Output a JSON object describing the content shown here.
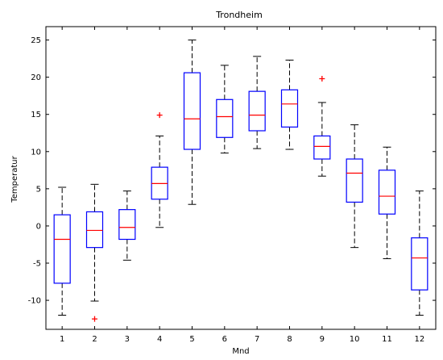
{
  "chart_data": {
    "type": "box",
    "title": "Trondheim",
    "xlabel": "Mnd",
    "ylabel": "Temperatur",
    "categories": [
      "1",
      "2",
      "3",
      "4",
      "5",
      "6",
      "7",
      "8",
      "9",
      "10",
      "11",
      "12"
    ],
    "yticks": [
      25,
      20,
      15,
      10,
      5,
      0,
      -5,
      -10
    ],
    "ylim": [
      -13.9,
      26.8
    ],
    "grid": false,
    "colors": {
      "box": "#0000ff",
      "median": "#ff0000",
      "whisker": "#000000",
      "outlier": "#ff0000"
    },
    "boxes": [
      {
        "month": "1",
        "whisker_low": -12.0,
        "q1": -7.7,
        "median": -1.8,
        "q3": 1.5,
        "whisker_high": 5.2,
        "outliers": []
      },
      {
        "month": "2",
        "whisker_low": -10.1,
        "q1": -2.9,
        "median": -0.6,
        "q3": 1.9,
        "whisker_high": 5.6,
        "outliers": [
          -12.5
        ]
      },
      {
        "month": "3",
        "whisker_low": -4.6,
        "q1": -1.8,
        "median": -0.2,
        "q3": 2.2,
        "whisker_high": 4.7,
        "outliers": []
      },
      {
        "month": "4",
        "whisker_low": -0.2,
        "q1": 3.6,
        "median": 5.7,
        "q3": 7.9,
        "whisker_high": 12.1,
        "outliers": [
          14.9
        ]
      },
      {
        "month": "5",
        "whisker_low": 2.9,
        "q1": 10.3,
        "median": 14.4,
        "q3": 20.6,
        "whisker_high": 25.0,
        "outliers": []
      },
      {
        "month": "6",
        "whisker_low": 9.8,
        "q1": 11.9,
        "median": 14.7,
        "q3": 17.0,
        "whisker_high": 21.6,
        "outliers": []
      },
      {
        "month": "7",
        "whisker_low": 10.4,
        "q1": 12.8,
        "median": 14.9,
        "q3": 18.1,
        "whisker_high": 22.8,
        "outliers": []
      },
      {
        "month": "8",
        "whisker_low": 10.3,
        "q1": 13.3,
        "median": 16.4,
        "q3": 18.3,
        "whisker_high": 22.3,
        "outliers": []
      },
      {
        "month": "9",
        "whisker_low": 6.7,
        "q1": 9.0,
        "median": 10.7,
        "q3": 12.1,
        "whisker_high": 16.6,
        "outliers": [
          19.8
        ]
      },
      {
        "month": "10",
        "whisker_low": -2.9,
        "q1": 3.2,
        "median": 7.1,
        "q3": 9.0,
        "whisker_high": 13.6,
        "outliers": []
      },
      {
        "month": "11",
        "whisker_low": -4.4,
        "q1": 1.6,
        "median": 4.0,
        "q3": 7.5,
        "whisker_high": 10.6,
        "outliers": []
      },
      {
        "month": "12",
        "whisker_low": -12.0,
        "q1": -8.6,
        "median": -4.3,
        "q3": -1.6,
        "whisker_high": 4.7,
        "outliers": []
      }
    ]
  }
}
